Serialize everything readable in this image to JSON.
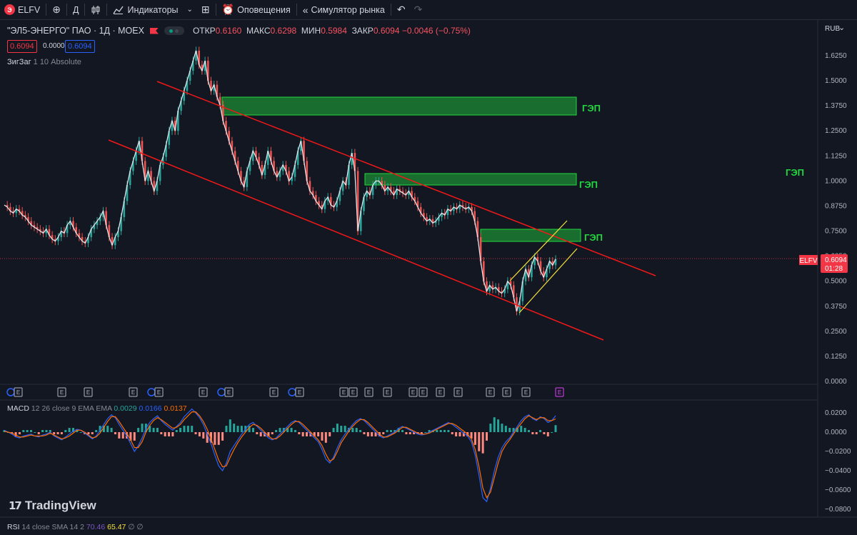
{
  "toolbar": {
    "symbol": "ELFV",
    "interval": "Д",
    "indicators_label": "Индикаторы",
    "alerts_label": "Оповещения",
    "replay_label": "Симулятор рынка"
  },
  "legend": {
    "title": "\"ЭЛ5-ЭНЕРГО\" ПАО · 1Д · MOEX",
    "open_k": "ОТКР",
    "open_v": "0.6160",
    "high_k": "МАКС",
    "high_v": "0.6298",
    "low_k": "МИН",
    "low_v": "0.5984",
    "close_k": "ЗАКР",
    "close_v": "0.6094",
    "change": "−0.0046 (−0.75%)",
    "bid": "0.6094",
    "spread": "0.0000",
    "ask": "0.6094"
  },
  "indicators": {
    "zigzag_name": "ЗигЗаг",
    "zigzag_params": "1 10 Absolute",
    "macd_name": "MACD",
    "macd_params": "12 26 close 9 EMA EMA",
    "macd_hist": "0.0029",
    "macd_line": "0.0166",
    "macd_signal": "0.0137",
    "rsi_name": "RSI",
    "rsi_params": "14 close SMA 14 2",
    "rsi_value": "70.46",
    "rsi_sma": "65.47",
    "rsi_extra": "∅ ∅"
  },
  "currency": "RUB",
  "price_axis": [
    "1.6250",
    "1.5000",
    "1.3750",
    "1.2500",
    "1.1250",
    "1.0000",
    "0.8750",
    "0.7500",
    "0.6250",
    "0.5000",
    "0.3750",
    "0.2500",
    "0.1250",
    "0.0000"
  ],
  "macd_axis": [
    "0.0200",
    "0.0000",
    "−0.0200",
    "−0.0400",
    "−0.0600",
    "−0.0800"
  ],
  "last_price": {
    "symbol": "ELFV",
    "price": "0.6094",
    "countdown": "01:28"
  },
  "gap_labels": [
    "ГЭП",
    "ГЭП",
    "ГЭП",
    "ГЭП"
  ],
  "brand": "TradingView",
  "colors": {
    "up": "#26a69a",
    "down": "#ef5350",
    "channel": "#f21818",
    "gap": "#22d83e",
    "yellow": "#f7e13c",
    "macd": "#2962ff",
    "signal": "#ff6d00"
  },
  "chart_data": {
    "type": "line",
    "title": "\"ЭЛ5-ЭНЕРГО\" ПАО · 1Д · MOEX",
    "ylim": [
      0.0,
      1.66
    ],
    "price": [
      0.88,
      0.87,
      0.85,
      0.84,
      0.86,
      0.85,
      0.83,
      0.82,
      0.8,
      0.78,
      0.77,
      0.76,
      0.75,
      0.74,
      0.76,
      0.73,
      0.71,
      0.7,
      0.72,
      0.75,
      0.74,
      0.78,
      0.8,
      0.77,
      0.74,
      0.72,
      0.7,
      0.69,
      0.72,
      0.76,
      0.78,
      0.8,
      0.82,
      0.85,
      0.78,
      0.72,
      0.68,
      0.72,
      0.75,
      0.82,
      0.9,
      0.98,
      1.05,
      1.1,
      1.15,
      1.2,
      1.1,
      1.0,
      1.05,
      1.0,
      0.95,
      1.0,
      1.08,
      1.12,
      1.18,
      1.25,
      1.3,
      1.25,
      1.35,
      1.4,
      1.45,
      1.5,
      1.55,
      1.6,
      1.65,
      1.58,
      1.55,
      1.6,
      1.5,
      1.45,
      1.48,
      1.42,
      1.38,
      1.3,
      1.25,
      1.2,
      1.15,
      1.1,
      1.05,
      1.0,
      0.97,
      1.05,
      1.1,
      1.15,
      1.12,
      1.08,
      1.03,
      1.08,
      1.15,
      1.1,
      1.05,
      1.02,
      1.05,
      1.08,
      1.05,
      1.0,
      1.02,
      1.08,
      1.15,
      1.2,
      1.1,
      1.0,
      0.95,
      0.93,
      0.9,
      0.88,
      0.86,
      0.9,
      0.92,
      0.88,
      0.87,
      0.9,
      0.95,
      1.0,
      0.98,
      1.08,
      1.14,
      1.05,
      0.75,
      0.85,
      0.92,
      0.95,
      0.93,
      0.98,
      1.0,
      1.0,
      0.98,
      0.95,
      0.97,
      0.95,
      0.93,
      0.96,
      0.95,
      0.94,
      0.93,
      0.95,
      0.92,
      0.9,
      0.87,
      0.84,
      0.82,
      0.8,
      0.81,
      0.79,
      0.8,
      0.82,
      0.84,
      0.83,
      0.86,
      0.85,
      0.87,
      0.86,
      0.88,
      0.87,
      0.86,
      0.87,
      0.85,
      0.8,
      0.72,
      0.6,
      0.5,
      0.45,
      0.48,
      0.46,
      0.47,
      0.45,
      0.44,
      0.46,
      0.5,
      0.48,
      0.42,
      0.35,
      0.4,
      0.5,
      0.56,
      0.52,
      0.58,
      0.62,
      0.6,
      0.55,
      0.52,
      0.56,
      0.6,
      0.58,
      0.61
    ],
    "macd": [
      0.002,
      0.0,
      -0.002,
      -0.005,
      -0.006,
      -0.004,
      -0.003,
      -0.002,
      -0.004,
      -0.005,
      -0.003,
      -0.002,
      0.0,
      -0.004,
      -0.006,
      -0.008,
      -0.005,
      -0.002,
      0.001,
      0.003,
      0.002,
      -0.001,
      -0.004,
      -0.007,
      -0.004,
      0.002,
      0.008,
      0.014,
      0.018,
      0.015,
      0.008,
      0.002,
      -0.004,
      -0.012,
      -0.02,
      -0.014,
      -0.006,
      0.004,
      0.01,
      0.014,
      0.017,
      0.012,
      0.008,
      0.005,
      0.002,
      0.006,
      0.01,
      0.016,
      0.02,
      0.024,
      0.02,
      0.015,
      0.008,
      -0.002,
      -0.012,
      -0.024,
      -0.035,
      -0.04,
      -0.032,
      -0.02,
      -0.014,
      -0.008,
      -0.002,
      0.003,
      0.008,
      0.01,
      0.006,
      0.002,
      -0.002,
      -0.006,
      -0.008,
      -0.006,
      -0.002,
      0.002,
      0.006,
      0.01,
      0.012,
      0.01,
      0.006,
      0.002,
      -0.002,
      -0.006,
      -0.01,
      -0.018,
      -0.028,
      -0.032,
      -0.026,
      -0.016,
      -0.008,
      -0.002,
      0.003,
      0.008,
      0.012,
      0.014,
      0.012,
      0.008,
      0.004,
      0.0,
      -0.004,
      -0.006,
      -0.004,
      -0.002,
      0.0,
      0.004,
      0.006,
      0.004,
      0.002,
      0.0,
      -0.002,
      -0.003,
      -0.002,
      0.0,
      0.002,
      0.004,
      0.006,
      0.008,
      0.01,
      0.008,
      0.005,
      0.002,
      -0.001,
      -0.004,
      -0.01,
      -0.024,
      -0.045,
      -0.068,
      -0.072,
      -0.058,
      -0.04,
      -0.026,
      -0.016,
      -0.01,
      -0.006,
      0.0,
      0.006,
      0.012,
      0.016,
      0.018,
      0.014,
      0.012,
      0.016,
      0.014,
      0.01,
      0.012,
      0.017
    ],
    "signal": [
      0.001,
      0.0,
      -0.001,
      -0.003,
      -0.005,
      -0.005,
      -0.004,
      -0.003,
      -0.004,
      -0.004,
      -0.004,
      -0.003,
      -0.001,
      -0.003,
      -0.005,
      -0.007,
      -0.006,
      -0.004,
      -0.001,
      0.002,
      0.002,
      0.0,
      -0.003,
      -0.006,
      -0.005,
      -0.001,
      0.005,
      0.011,
      0.016,
      0.016,
      0.011,
      0.005,
      -0.001,
      -0.008,
      -0.016,
      -0.016,
      -0.01,
      0.0,
      0.007,
      0.012,
      0.015,
      0.013,
      0.01,
      0.007,
      0.004,
      0.005,
      0.008,
      0.013,
      0.017,
      0.021,
      0.021,
      0.017,
      0.011,
      0.003,
      -0.007,
      -0.018,
      -0.029,
      -0.036,
      -0.035,
      -0.026,
      -0.018,
      -0.011,
      -0.005,
      0.0,
      0.005,
      0.008,
      0.007,
      0.004,
      0.0,
      -0.004,
      -0.007,
      -0.007,
      -0.004,
      0.0,
      0.004,
      0.008,
      0.011,
      0.011,
      0.008,
      0.004,
      0.0,
      -0.004,
      -0.008,
      -0.014,
      -0.023,
      -0.03,
      -0.028,
      -0.02,
      -0.011,
      -0.005,
      0.001,
      0.006,
      0.01,
      0.013,
      0.013,
      0.01,
      0.006,
      0.002,
      -0.002,
      -0.005,
      -0.005,
      -0.003,
      -0.001,
      0.002,
      0.005,
      0.005,
      0.003,
      0.001,
      -0.001,
      -0.002,
      -0.002,
      -0.001,
      0.001,
      0.003,
      0.005,
      0.007,
      0.009,
      0.009,
      0.007,
      0.004,
      0.001,
      -0.002,
      -0.007,
      -0.018,
      -0.036,
      -0.058,
      -0.068,
      -0.062,
      -0.047,
      -0.032,
      -0.02,
      -0.013,
      -0.008,
      -0.002,
      0.004,
      0.009,
      0.014,
      0.017,
      0.015,
      0.013,
      0.015,
      0.015,
      0.012,
      0.012,
      0.0137
    ]
  }
}
